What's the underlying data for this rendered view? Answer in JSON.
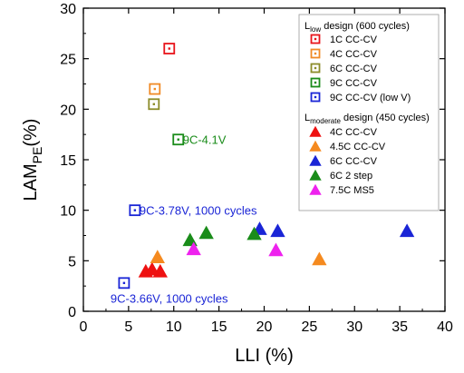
{
  "chart_data": {
    "type": "scatter",
    "title": "",
    "xlabel": "LLI (%)",
    "ylabel": {
      "main": "LAM",
      "sub": "PE",
      "suffix": "(%)"
    },
    "xlim": [
      0,
      40
    ],
    "ylim": [
      0,
      30
    ],
    "xticks": [
      0,
      5,
      10,
      15,
      20,
      25,
      30,
      35,
      40
    ],
    "yticks": [
      0,
      5,
      10,
      15,
      20,
      25,
      30
    ],
    "grid": false,
    "legend_position": "top-right",
    "legend_groups": [
      {
        "title_main": "L",
        "title_sub": "low",
        "title_rest": " design (600 cycles)"
      },
      {
        "title_main": "L",
        "title_sub": "moderate",
        "title_rest": " design (450 cycles)"
      }
    ],
    "series": [
      {
        "name": "1C CC-CV",
        "group": 0,
        "marker": "square",
        "color": "#e8141b",
        "points": [
          [
            9.5,
            26.0
          ]
        ]
      },
      {
        "name": "4C CC-CV",
        "group": 0,
        "marker": "square",
        "color": "#f08a26",
        "points": [
          [
            7.9,
            22.0
          ]
        ]
      },
      {
        "name": "6C CC-CV",
        "group": 0,
        "marker": "square",
        "color": "#8c8c2a",
        "points": [
          [
            7.8,
            20.5
          ]
        ]
      },
      {
        "name": "9C CC-CV",
        "group": 0,
        "marker": "square",
        "color": "#1a8c1a",
        "points": [
          [
            10.5,
            17.0
          ]
        ]
      },
      {
        "name": "9C CC-CV (low V)",
        "group": 0,
        "marker": "square",
        "color": "#1a25d6",
        "points": [
          [
            5.7,
            10.0
          ],
          [
            4.5,
            2.8
          ]
        ]
      },
      {
        "name": "4C CC-CV",
        "group": 1,
        "marker": "triangle",
        "color": "#ee1111",
        "points": [
          [
            6.9,
            4.0
          ],
          [
            8.5,
            4.0
          ],
          [
            7.6,
            4.2
          ]
        ]
      },
      {
        "name": "4.5C CC-CV",
        "group": 1,
        "marker": "triangle",
        "color": "#f58a1f",
        "points": [
          [
            8.2,
            5.4
          ],
          [
            26.1,
            5.2
          ]
        ]
      },
      {
        "name": "6C CC-CV",
        "group": 1,
        "marker": "triangle",
        "color": "#1a25d6",
        "points": [
          [
            19.5,
            8.2
          ],
          [
            21.5,
            8.0
          ],
          [
            35.8,
            8.0
          ]
        ]
      },
      {
        "name": "6C 2 step",
        "group": 1,
        "marker": "triangle",
        "color": "#1a8c1a",
        "points": [
          [
            11.8,
            7.1
          ],
          [
            13.6,
            7.8
          ],
          [
            18.9,
            7.7
          ]
        ]
      },
      {
        "name": "7.5C MS5",
        "group": 1,
        "marker": "triangle",
        "color": "#ee22ee",
        "points": [
          [
            12.2,
            6.2
          ],
          [
            21.3,
            6.1
          ]
        ]
      }
    ],
    "annotations": [
      {
        "text": "9C-4.1V",
        "x": 11.0,
        "y": 17.0,
        "color": "#1a8c1a"
      },
      {
        "text": "9C-3.78V, 1000 cycles",
        "x": 6.2,
        "y": 10.0,
        "color": "#1a25d6"
      },
      {
        "text": "9C-3.66V, 1000 cycles",
        "x": 3.0,
        "y": 1.3,
        "color": "#1a25d6"
      }
    ]
  }
}
